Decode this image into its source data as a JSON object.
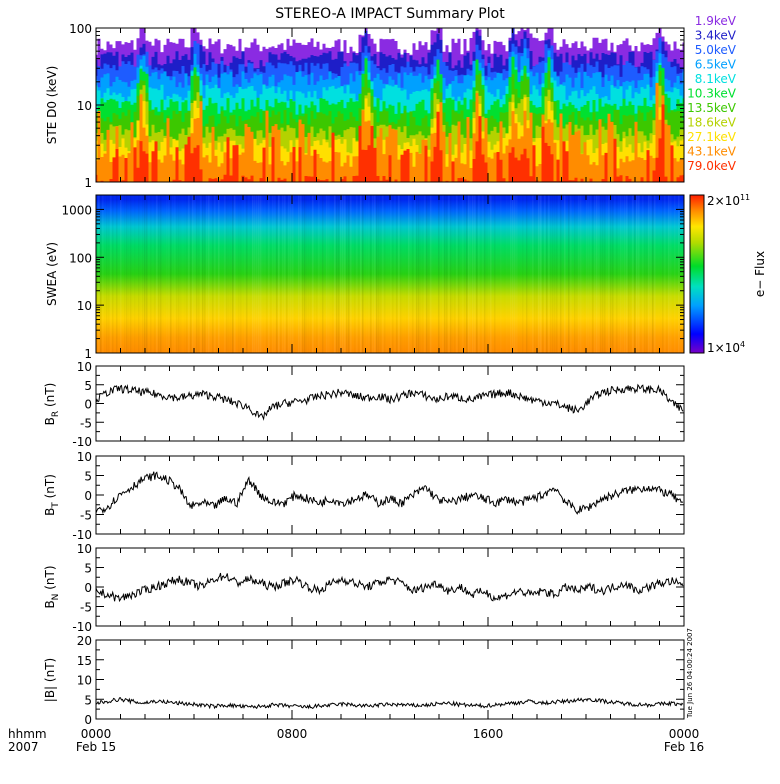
{
  "title": "STEREO-A IMPACT Summary Plot",
  "colors": {
    "energy": [
      "#8a2be2",
      "#1e1ec8",
      "#1e5cff",
      "#00a0ff",
      "#00e0e0",
      "#00e030",
      "#3cc800",
      "#b4d200",
      "#ffe000",
      "#ff8c00",
      "#ff3000"
    ]
  },
  "chart_data": [
    {
      "type": "area",
      "ylabel": "STE D0 (keV)",
      "yscale": "log",
      "ylim": [
        1,
        100
      ],
      "yticks": [
        "1",
        "10",
        "100"
      ],
      "legend": [
        "1.9keV",
        "3.4keV",
        "5.0keV",
        "6.5keV",
        "8.1keV",
        "10.3keV",
        "13.5keV",
        "18.6keV",
        "27.1keV",
        "43.1keV",
        "79.0keV"
      ],
      "legend_position": "right",
      "band_levels": [
        60,
        40,
        30,
        22,
        15,
        10,
        7,
        4.5,
        3,
        2,
        1
      ],
      "spike_x": [
        0.08,
        0.17,
        0.46,
        0.58,
        0.65,
        0.71,
        0.73,
        0.77,
        0.96
      ]
    },
    {
      "type": "heatmap",
      "ylabel": "SWEA (eV)",
      "yscale": "log",
      "ylim": [
        1,
        2000
      ],
      "yticks": [
        "1",
        "10",
        "100",
        "1000"
      ],
      "colorbar": {
        "label": "e− Flux",
        "max": "2×10",
        "max_exp": "11",
        "min": "1×10",
        "min_exp": "4"
      }
    },
    {
      "type": "line",
      "ylabel_main": "B",
      "ylabel_sub": "R",
      "ylabel_unit": " (nT)",
      "ylim": [
        -10,
        10
      ],
      "yticks": [
        "-10",
        "-5",
        "0",
        "5",
        "10"
      ],
      "x": [
        0,
        0.02,
        0.04,
        0.06,
        0.08,
        0.1,
        0.12,
        0.14,
        0.16,
        0.18,
        0.2,
        0.22,
        0.24,
        0.26,
        0.28,
        0.3,
        0.32,
        0.34,
        0.36,
        0.38,
        0.4,
        0.42,
        0.44,
        0.46,
        0.48,
        0.5,
        0.52,
        0.54,
        0.56,
        0.58,
        0.6,
        0.62,
        0.64,
        0.66,
        0.68,
        0.7,
        0.72,
        0.74,
        0.76,
        0.78,
        0.8,
        0.82,
        0.84,
        0.86,
        0.88,
        0.9,
        0.92,
        0.94,
        0.96,
        0.98,
        1.0
      ],
      "values": [
        1,
        3,
        4,
        3.5,
        3,
        2.5,
        2,
        1.5,
        2,
        2.5,
        2,
        1,
        0,
        -1,
        -4,
        -1,
        0,
        0.5,
        1,
        2,
        2.5,
        3,
        2,
        1.5,
        2,
        1,
        2,
        3,
        2,
        1,
        2,
        1.5,
        1,
        2,
        2.5,
        3,
        2,
        1,
        0.5,
        0,
        -1,
        -2,
        1,
        3,
        3.5,
        4,
        4,
        3.8,
        3.5,
        0,
        -2
      ]
    },
    {
      "type": "line",
      "ylabel_main": "B",
      "ylabel_sub": "T",
      "ylabel_unit": " (nT)",
      "ylim": [
        -10,
        10
      ],
      "yticks": [
        "-10",
        "-5",
        "0",
        "5",
        "10"
      ],
      "x": [
        0,
        0.02,
        0.04,
        0.06,
        0.08,
        0.1,
        0.12,
        0.14,
        0.16,
        0.18,
        0.2,
        0.22,
        0.24,
        0.26,
        0.28,
        0.3,
        0.32,
        0.34,
        0.36,
        0.38,
        0.4,
        0.42,
        0.44,
        0.46,
        0.48,
        0.5,
        0.52,
        0.54,
        0.56,
        0.58,
        0.6,
        0.62,
        0.64,
        0.66,
        0.68,
        0.7,
        0.72,
        0.74,
        0.76,
        0.78,
        0.8,
        0.82,
        0.84,
        0.86,
        0.88,
        0.9,
        0.92,
        0.94,
        0.96,
        0.98,
        1.0
      ],
      "values": [
        -4,
        -3,
        0,
        2,
        4,
        5,
        4,
        2,
        -3,
        -2,
        -3,
        -1,
        -2,
        4,
        0,
        -2,
        -2,
        0,
        -1,
        -2,
        -1,
        -2,
        -1,
        0,
        -2,
        -1,
        -2,
        0,
        2,
        -1,
        -2,
        -1,
        0,
        -1,
        -2,
        -1,
        -2,
        -1,
        0,
        2,
        -2,
        -4,
        -3,
        -1,
        0,
        1,
        1.5,
        2,
        1,
        0,
        -3
      ]
    },
    {
      "type": "line",
      "ylabel_main": "B",
      "ylabel_sub": "N",
      "ylabel_unit": " (nT)",
      "ylim": [
        -10,
        10
      ],
      "yticks": [
        "-10",
        "-5",
        "0",
        "5",
        "10"
      ],
      "x": [
        0,
        0.02,
        0.04,
        0.06,
        0.08,
        0.1,
        0.12,
        0.14,
        0.16,
        0.18,
        0.2,
        0.22,
        0.24,
        0.26,
        0.28,
        0.3,
        0.32,
        0.34,
        0.36,
        0.38,
        0.4,
        0.42,
        0.44,
        0.46,
        0.48,
        0.5,
        0.52,
        0.54,
        0.56,
        0.58,
        0.6,
        0.62,
        0.64,
        0.66,
        0.68,
        0.7,
        0.72,
        0.74,
        0.76,
        0.78,
        0.8,
        0.82,
        0.84,
        0.86,
        0.88,
        0.9,
        0.92,
        0.94,
        0.96,
        0.98,
        1.0
      ],
      "values": [
        -1,
        -2,
        -3,
        -2,
        -1,
        0,
        1,
        2,
        1,
        0,
        2,
        3,
        1,
        2,
        1,
        0,
        1,
        2,
        0,
        -1,
        1,
        2,
        1,
        0,
        1,
        2,
        1,
        -1,
        0,
        1,
        -1,
        0,
        -2,
        -1,
        -3,
        -2,
        -1,
        -2,
        -1,
        -2,
        0,
        -1,
        0,
        -1,
        0,
        1,
        -1,
        0,
        1,
        1.5,
        0
      ]
    },
    {
      "type": "line",
      "ylabel": "|B| (nT)",
      "ylim": [
        0,
        20
      ],
      "yticks": [
        "0",
        "5",
        "10",
        "15",
        "20"
      ],
      "x": [
        0,
        0.02,
        0.04,
        0.06,
        0.08,
        0.1,
        0.12,
        0.14,
        0.16,
        0.18,
        0.2,
        0.22,
        0.24,
        0.26,
        0.28,
        0.3,
        0.32,
        0.34,
        0.36,
        0.38,
        0.4,
        0.42,
        0.44,
        0.46,
        0.48,
        0.5,
        0.52,
        0.54,
        0.56,
        0.58,
        0.6,
        0.62,
        0.64,
        0.66,
        0.68,
        0.7,
        0.72,
        0.74,
        0.76,
        0.78,
        0.8,
        0.82,
        0.84,
        0.86,
        0.88,
        0.9,
        0.92,
        0.94,
        0.96,
        0.98,
        1.0
      ],
      "values": [
        4,
        4.5,
        5,
        4.5,
        4,
        4.5,
        4.3,
        4,
        3.8,
        3.5,
        3.2,
        3.5,
        3.3,
        3,
        3.2,
        3.5,
        3.4,
        3.2,
        3,
        3.3,
        3.5,
        3.8,
        3.5,
        3.3,
        3.5,
        3.7,
        3.6,
        3.4,
        3.5,
        3.8,
        4,
        3.6,
        3.4,
        3.3,
        3.6,
        3.9,
        4.2,
        4.5,
        4,
        4.3,
        4.5,
        4.8,
        5,
        4.6,
        4.2,
        3.9,
        3.7,
        3.6,
        3.8,
        4,
        3.5
      ],
      "side_note": "Tue Jun 26 04:00:24 2007"
    }
  ],
  "x_axis": {
    "tick_labels": [
      "0000",
      "0800",
      "1600",
      "0000"
    ],
    "date_labels": [
      "Feb 15",
      "Feb 16"
    ],
    "hhmm_label": "hhmm",
    "year_label": "2007"
  }
}
